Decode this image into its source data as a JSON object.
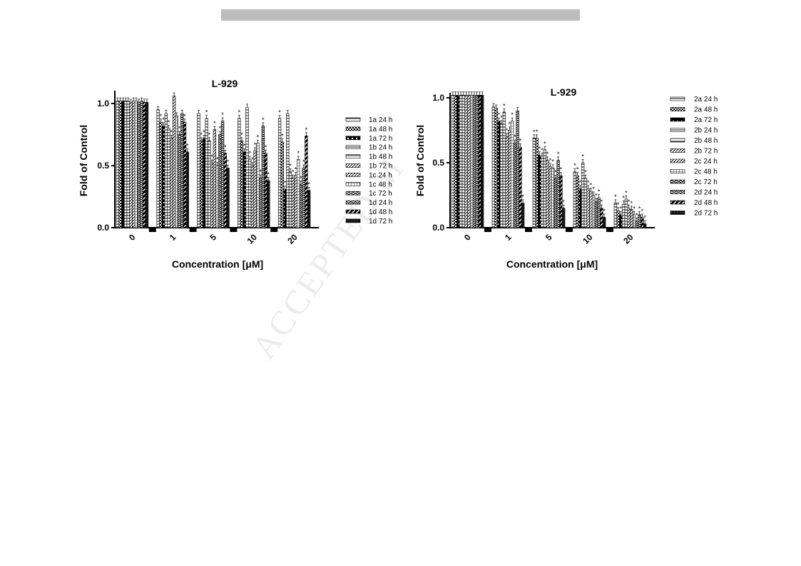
{
  "watermark": "ACCEPTED M",
  "chart_data": [
    {
      "type": "bar",
      "title": "L-929",
      "xlabel": "Concentration [μM]",
      "ylabel": "Fold of  Control",
      "ylim": [
        0,
        1.1
      ],
      "yticks": [
        "0.0",
        "0.5",
        "1.0"
      ],
      "categories": [
        "0",
        "1",
        "5",
        "10",
        "20"
      ],
      "legend_position": "right",
      "series": [
        {
          "name": "1a 24 h",
          "pattern": "hline",
          "values": [
            1.02,
            0.95,
            0.92,
            0.88,
            0.88
          ]
        },
        {
          "name": "1a 48 h",
          "pattern": "check",
          "values": [
            1.02,
            0.85,
            0.7,
            0.7,
            0.69
          ]
        },
        {
          "name": "1a 72 h",
          "pattern": "block",
          "values": [
            1.02,
            0.82,
            0.72,
            0.61,
            0.31
          ]
        },
        {
          "name": "1b 24 h",
          "pattern": "hline",
          "values": [
            1.02,
            0.92,
            0.88,
            0.97,
            0.92
          ]
        },
        {
          "name": "1b 48 h",
          "pattern": "hline",
          "values": [
            1.02,
            0.8,
            0.7,
            0.55,
            0.45
          ]
        },
        {
          "name": "1b 72 h",
          "pattern": "diag",
          "values": [
            1.01,
            0.72,
            0.52,
            0.5,
            0.4
          ]
        },
        {
          "name": "1c 24 h",
          "pattern": "diag",
          "values": [
            1.02,
            1.06,
            0.79,
            0.62,
            0.42
          ]
        },
        {
          "name": "1c 48 h",
          "pattern": "grid",
          "values": [
            1.02,
            0.9,
            0.5,
            0.68,
            0.55
          ]
        },
        {
          "name": "1c 72 h",
          "pattern": "zig",
          "values": [
            1.01,
            0.75,
            0.75,
            0.4,
            0.35
          ]
        },
        {
          "name": "1d 24 h",
          "pattern": "zig",
          "values": [
            1.02,
            0.92,
            0.86,
            0.82,
            0.48
          ]
        },
        {
          "name": "1d 48 h",
          "pattern": "zag",
          "values": [
            1.01,
            0.85,
            0.6,
            0.6,
            0.74
          ]
        },
        {
          "name": "1d 72 h",
          "pattern": "solid",
          "values": [
            1.01,
            0.61,
            0.48,
            0.38,
            0.3
          ]
        }
      ],
      "significance_marks": [
        "*"
      ]
    },
    {
      "type": "bar",
      "title": "L-929",
      "xlabel": "Concentration [μM]",
      "ylabel": "Fold of  Control",
      "ylim": [
        0,
        1.05
      ],
      "yticks": [
        "0.0",
        "0.5",
        "1.0"
      ],
      "categories": [
        "0",
        "1",
        "5",
        "10",
        "20"
      ],
      "legend_position": "right",
      "series": [
        {
          "name": "2a 24 h",
          "pattern": "hline",
          "values": [
            1.02,
            0.93,
            0.69,
            0.43,
            0.19
          ]
        },
        {
          "name": "2a 48 h",
          "pattern": "check",
          "values": [
            1.02,
            0.92,
            0.69,
            0.4,
            0.13
          ]
        },
        {
          "name": "2a 72 h",
          "pattern": "block",
          "values": [
            1.02,
            0.82,
            0.56,
            0.3,
            0.1
          ]
        },
        {
          "name": "2b 24 h",
          "pattern": "hline",
          "values": [
            1.02,
            0.8,
            0.55,
            0.5,
            0.18
          ]
        },
        {
          "name": "2b 48 h",
          "pattern": "hline",
          "values": [
            1.02,
            0.89,
            0.6,
            0.38,
            0.22
          ]
        },
        {
          "name": "2b 72 h",
          "pattern": "diag",
          "values": [
            1.02,
            0.7,
            0.52,
            0.3,
            0.15
          ]
        },
        {
          "name": "2c 24 h",
          "pattern": "diag",
          "values": [
            1.02,
            0.75,
            0.47,
            0.28,
            0.14
          ]
        },
        {
          "name": "2c 48 h",
          "pattern": "grid",
          "values": [
            1.02,
            0.82,
            0.46,
            0.25,
            0.1
          ]
        },
        {
          "name": "2c 72 h",
          "pattern": "zig",
          "values": [
            1.02,
            0.65,
            0.38,
            0.2,
            0.05
          ]
        },
        {
          "name": "2d 24 h",
          "pattern": "zig",
          "values": [
            1.02,
            0.9,
            0.52,
            0.23,
            0.1
          ]
        },
        {
          "name": "2d 48 h",
          "pattern": "zag",
          "values": [
            1.02,
            0.62,
            0.4,
            0.15,
            0.08
          ]
        },
        {
          "name": "2d 72 h",
          "pattern": "solid",
          "values": [
            1.02,
            0.19,
            0.15,
            0.08,
            0.03
          ]
        }
      ],
      "significance_marks": [
        "*"
      ]
    }
  ]
}
